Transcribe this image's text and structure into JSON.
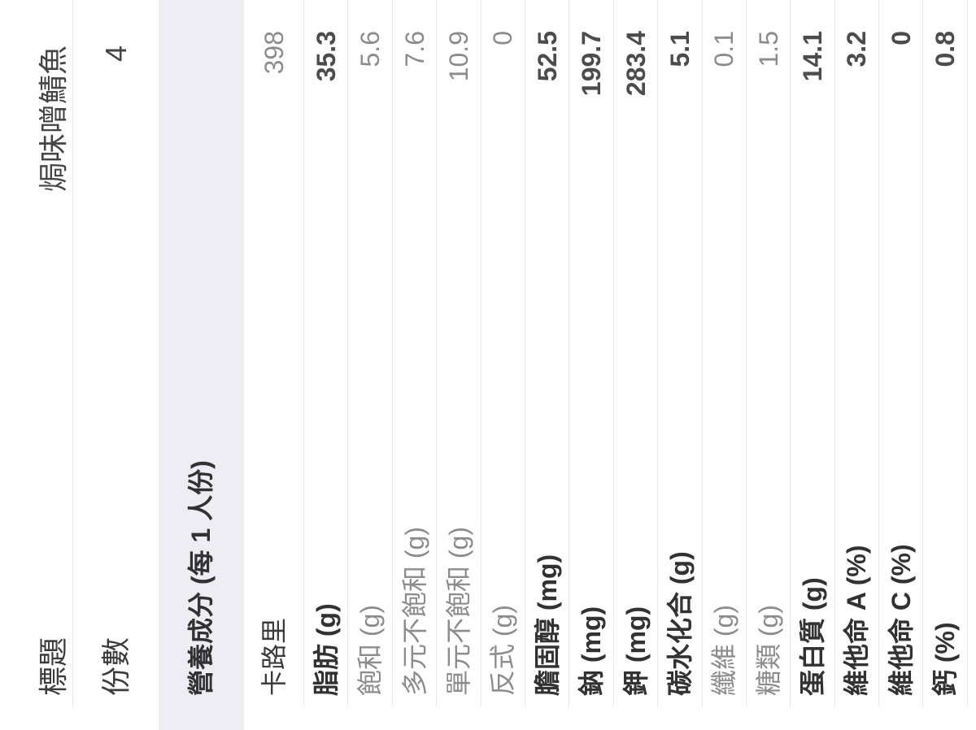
{
  "screen": {
    "rotation_deg_ccw": 90,
    "colors": {
      "background": "#ffffff",
      "section_header_bg": "#ededf3",
      "divider": "#e9e9e9",
      "text_dark": "#3b3b3b",
      "text_bold_label": "#323232",
      "text_bold_value": "#4c4c4c",
      "text_gray": "#8c8c8c"
    }
  },
  "table": {
    "rows": [
      {
        "key": "title",
        "label": "標題",
        "value": "焗味噌鯖魚",
        "type": "title",
        "label_style": "regular",
        "value_style": "dark",
        "divider": true
      },
      {
        "key": "servings",
        "label": "份數",
        "value": "4",
        "type": "field",
        "label_style": "regular",
        "value_style": "dark",
        "divider": false
      },
      {
        "key": "nutrition-section",
        "label": "營養成分 (每 1 人份)",
        "value": "",
        "type": "section",
        "label_style": "bold",
        "value_style": "dark",
        "divider": false
      },
      {
        "key": "calories",
        "label": "卡路里",
        "value": "398",
        "type": "calories",
        "label_style": "regular",
        "value_style": "gray",
        "divider": true
      },
      {
        "key": "fat",
        "label": "脂肪 (g)",
        "value": "35.3",
        "type": "nutrient",
        "label_style": "bold",
        "value_style": "bold",
        "divider": true
      },
      {
        "key": "saturated-fat",
        "label": "飽和 (g)",
        "value": "5.6",
        "type": "nutrient",
        "label_style": "gray",
        "value_style": "gray",
        "divider": true
      },
      {
        "key": "polyunsaturated-fat",
        "label": "多元不飽和 (g)",
        "value": "7.6",
        "type": "nutrient",
        "label_style": "gray",
        "value_style": "gray",
        "divider": true
      },
      {
        "key": "monounsaturated-fat",
        "label": "單元不飽和 (g)",
        "value": "10.9",
        "type": "nutrient",
        "label_style": "gray",
        "value_style": "gray",
        "divider": true
      },
      {
        "key": "trans-fat",
        "label": "反式 (g)",
        "value": "0",
        "type": "nutrient",
        "label_style": "gray",
        "value_style": "gray",
        "divider": true
      },
      {
        "key": "cholesterol",
        "label": "膽固醇 (mg)",
        "value": "52.5",
        "type": "nutrient",
        "label_style": "bold",
        "value_style": "bold",
        "divider": true
      },
      {
        "key": "sodium",
        "label": "鈉 (mg)",
        "value": "199.7",
        "type": "nutrient",
        "label_style": "bold",
        "value_style": "bold",
        "divider": true
      },
      {
        "key": "potassium",
        "label": "鉀 (mg)",
        "value": "283.4",
        "type": "nutrient",
        "label_style": "bold",
        "value_style": "bold",
        "divider": true
      },
      {
        "key": "carbohydrate",
        "label": "碳水化合 (g)",
        "value": "5.1",
        "type": "nutrient",
        "label_style": "bold",
        "value_style": "bold",
        "divider": true
      },
      {
        "key": "fiber",
        "label": "纖維 (g)",
        "value": "0.1",
        "type": "nutrient",
        "label_style": "gray",
        "value_style": "gray",
        "divider": true
      },
      {
        "key": "sugar",
        "label": "糖類 (g)",
        "value": "1.5",
        "type": "nutrient",
        "label_style": "gray",
        "value_style": "gray",
        "divider": true
      },
      {
        "key": "protein",
        "label": "蛋白質 (g)",
        "value": "14.1",
        "type": "nutrient",
        "label_style": "bold",
        "value_style": "bold",
        "divider": true
      },
      {
        "key": "vitamin-a",
        "label": "維他命 A (%)",
        "value": "3.2",
        "type": "nutrient",
        "label_style": "bold",
        "value_style": "bold",
        "divider": true
      },
      {
        "key": "vitamin-c",
        "label": "維他命 C (%)",
        "value": "0",
        "type": "nutrient",
        "label_style": "bold",
        "value_style": "bold",
        "divider": true
      },
      {
        "key": "calcium",
        "label": "鈣 (%)",
        "value": "0.8",
        "type": "nutrient",
        "label_style": "bold",
        "value_style": "bold",
        "divider": true
      }
    ]
  }
}
